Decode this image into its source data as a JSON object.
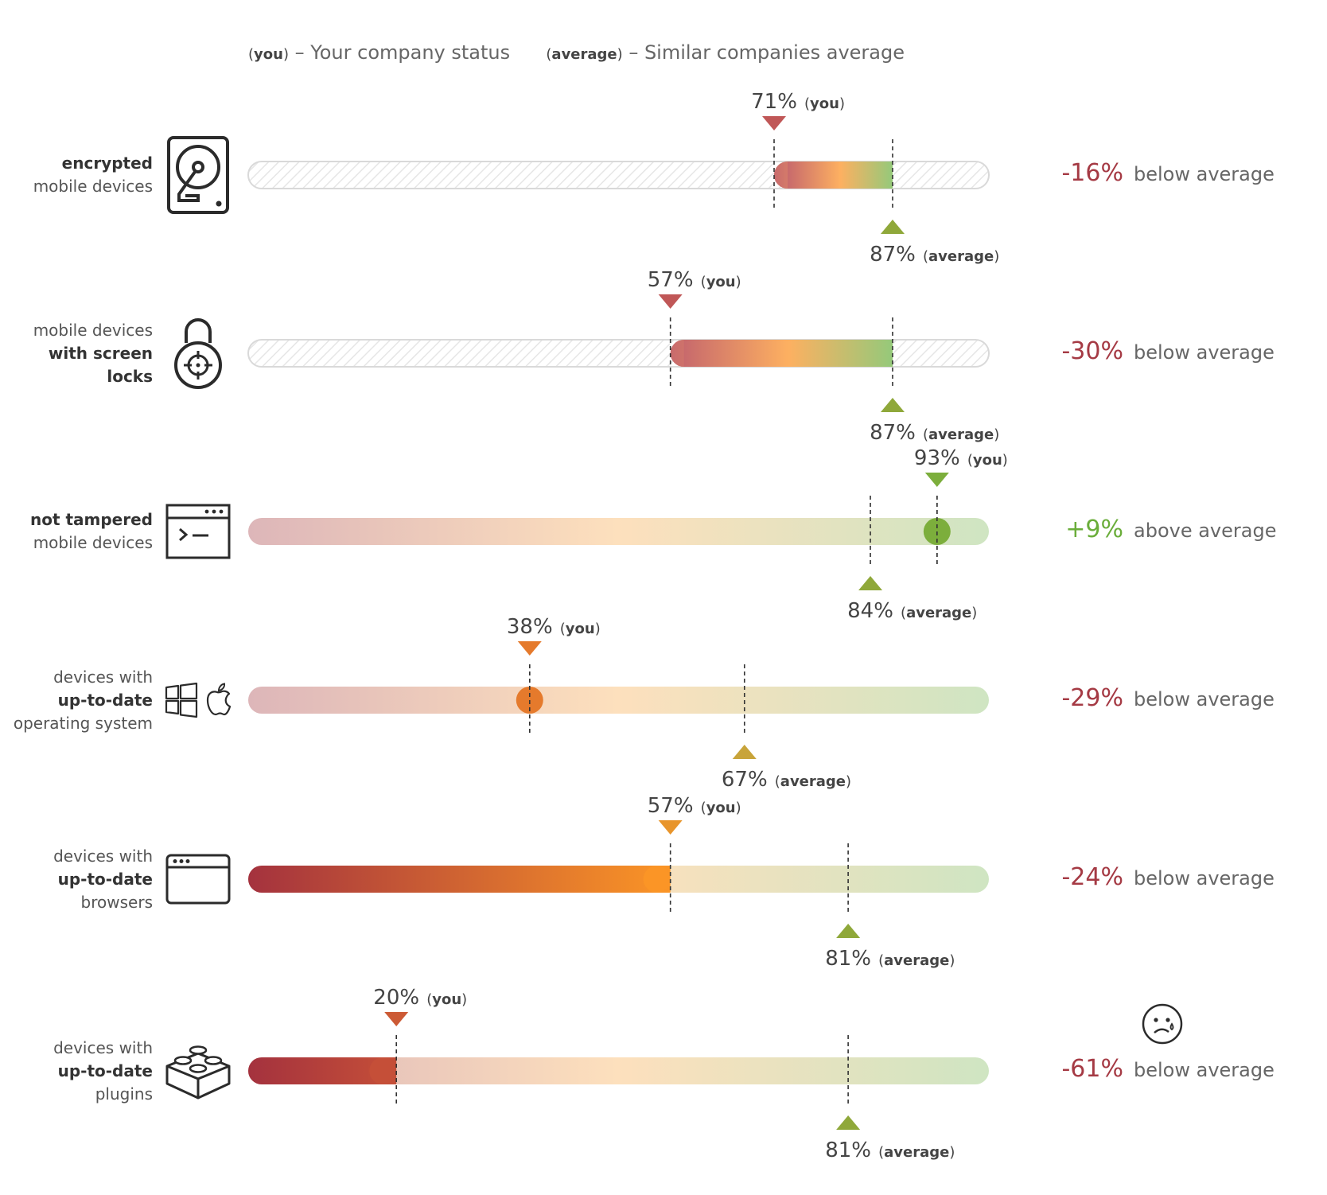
{
  "legend": {
    "you_tag": "you",
    "you_text": "– Your company status",
    "avg_tag": "average",
    "avg_text": "– Similar companies average"
  },
  "colors": {
    "negative": "#a53a44",
    "positive": "#6aad3a",
    "you_marker_red": "#c05757",
    "you_marker_green": "#7cae3c",
    "you_marker_orange": "#e57a2c",
    "avg_marker_green": "#8fa83a",
    "avg_marker_gold": "#c8a43a"
  },
  "chart_data": {
    "type": "bar",
    "xlim": [
      0,
      100
    ],
    "grid": false,
    "items": [
      {
        "label_lines": [
          {
            "text": "encrypted",
            "bold": true
          },
          {
            "text": "mobile devices",
            "bold": false
          }
        ],
        "icon": "hard-drive-icon",
        "you": 71,
        "average": 87,
        "you_label": "71%",
        "avg_label": "87%",
        "diff": "-16%",
        "comparison": "below average",
        "style": "range"
      },
      {
        "label_lines": [
          {
            "text": "mobile devices",
            "bold": false
          },
          {
            "text": "with screen",
            "bold": true
          },
          {
            "text": "locks",
            "bold": true
          }
        ],
        "icon": "padlock-icon",
        "you": 57,
        "average": 87,
        "you_label": "57%",
        "avg_label": "87%",
        "diff": "-30%",
        "comparison": "below average",
        "style": "range"
      },
      {
        "label_lines": [
          {
            "text": "not tampered",
            "bold": true
          },
          {
            "text": "mobile devices",
            "bold": false
          }
        ],
        "icon": "terminal-icon",
        "you": 93,
        "average": 84,
        "you_label": "93%",
        "avg_label": "84%",
        "diff": "+9%",
        "comparison": "above average",
        "style": "dot"
      },
      {
        "label_lines": [
          {
            "text": "devices with",
            "bold": false
          },
          {
            "text": "up-to-date",
            "bold": true
          },
          {
            "text": "operating system",
            "bold": false
          }
        ],
        "icon": "windows-apple-icon",
        "you": 38,
        "average": 67,
        "you_label": "38%",
        "avg_label": "67%",
        "diff": "-29%",
        "comparison": "below average",
        "style": "dot"
      },
      {
        "label_lines": [
          {
            "text": "devices with",
            "bold": false
          },
          {
            "text": "up-to-date",
            "bold": true
          },
          {
            "text": "browsers",
            "bold": false
          }
        ],
        "icon": "browser-window-icon",
        "you": 57,
        "average": 81,
        "you_label": "57%",
        "avg_label": "81%",
        "diff": "-24%",
        "comparison": "below average",
        "style": "fill"
      },
      {
        "label_lines": [
          {
            "text": "devices with",
            "bold": false
          },
          {
            "text": "up-to-date",
            "bold": true
          },
          {
            "text": "plugins",
            "bold": false
          }
        ],
        "icon": "lego-brick-icon",
        "you": 20,
        "average": 81,
        "you_label": "20%",
        "avg_label": "81%",
        "diff": "-61%",
        "comparison": "below average",
        "style": "fill",
        "sad_face": true
      }
    ]
  }
}
